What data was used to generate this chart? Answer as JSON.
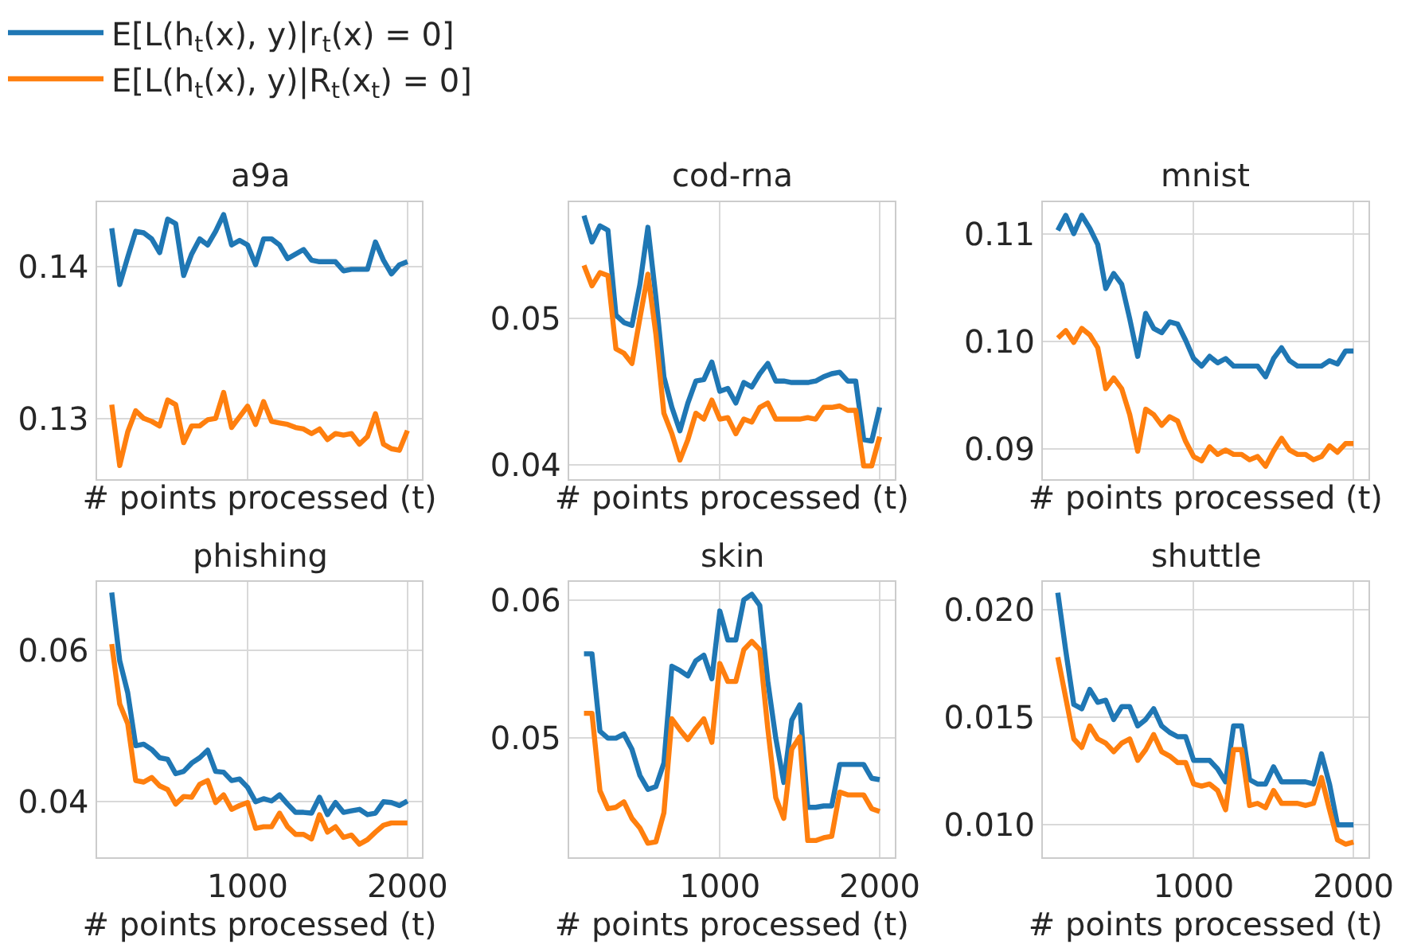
{
  "chart_data": [
    {
      "type": "line",
      "title": "a9a",
      "xlabel": "# points processed (t)",
      "legend": "top left",
      "grid": true,
      "tick_labels": "y",
      "xlim": [
        57.5,
        2092.5
      ],
      "xticks": [
        1000,
        2000
      ],
      "ylim": [
        0.126,
        0.1442
      ],
      "yticks": [
        0.13,
        0.14
      ],
      "x": [
        150,
        200,
        250,
        300,
        350,
        400,
        450,
        500,
        550,
        600,
        650,
        700,
        750,
        800,
        850,
        900,
        950,
        1000,
        1050,
        1100,
        1150,
        1200,
        1250,
        1300,
        1350,
        1400,
        1450,
        1500,
        1550,
        1600,
        1650,
        1700,
        1750,
        1800,
        1850,
        1900,
        1950,
        2000
      ],
      "series": [
        {
          "name": "E[L(h$_{t}$(x), y)|r$_{t}$(x) = 0]",
          "color": "#1f77b4",
          "values": [
            0.1425,
            0.1388,
            0.1406,
            0.1423,
            0.1422,
            0.1418,
            0.1409,
            0.1431,
            0.1428,
            0.1394,
            0.1408,
            0.1418,
            0.1414,
            0.1423,
            0.1434,
            0.1414,
            0.1417,
            0.1414,
            0.1401,
            0.1418,
            0.1418,
            0.1414,
            0.1405,
            0.1408,
            0.1411,
            0.1404,
            0.1403,
            0.1403,
            0.1403,
            0.1397,
            0.1398,
            0.1398,
            0.1398,
            0.1416,
            0.1404,
            0.1395,
            0.1401,
            0.1403
          ]
        },
        {
          "name": "E[L(h$_{t}$(x), y)|R$_{t}$(x$_{t}$) = 0]",
          "color": "#ff7f0e",
          "values": [
            0.1309,
            0.1269,
            0.1291,
            0.1305,
            0.13,
            0.1298,
            0.1295,
            0.1312,
            0.1309,
            0.1284,
            0.1295,
            0.1295,
            0.1299,
            0.13,
            0.1317,
            0.1294,
            0.1301,
            0.1308,
            0.1296,
            0.1311,
            0.1298,
            0.1297,
            0.1296,
            0.1294,
            0.1293,
            0.129,
            0.1293,
            0.1286,
            0.129,
            0.1289,
            0.129,
            0.1283,
            0.1288,
            0.1303,
            0.1283,
            0.128,
            0.1279,
            0.1292
          ]
        }
      ]
    },
    {
      "type": "line",
      "title": "cod-rna",
      "xlabel": "# points processed (t)",
      "grid": true,
      "tick_labels": "y",
      "xlim": [
        57.5,
        2092.5
      ],
      "xticks": [
        1000,
        2000
      ],
      "ylim": [
        0.039,
        0.0579
      ],
      "yticks": [
        0.04,
        0.05
      ],
      "x": [
        150,
        200,
        250,
        300,
        350,
        400,
        450,
        500,
        550,
        600,
        650,
        700,
        750,
        800,
        850,
        900,
        950,
        1000,
        1050,
        1100,
        1150,
        1200,
        1250,
        1300,
        1350,
        1400,
        1450,
        1500,
        1550,
        1600,
        1650,
        1700,
        1750,
        1800,
        1850,
        1900,
        1950,
        2000
      ],
      "series": [
        {
          "color": "#1f77b4",
          "values": [
            0.057,
            0.0552,
            0.0563,
            0.056,
            0.0502,
            0.0497,
            0.0495,
            0.0523,
            0.0562,
            0.0514,
            0.046,
            0.0439,
            0.0423,
            0.0442,
            0.0457,
            0.0458,
            0.047,
            0.045,
            0.0452,
            0.0442,
            0.0456,
            0.0453,
            0.0462,
            0.0469,
            0.0457,
            0.0457,
            0.0456,
            0.0456,
            0.0456,
            0.0457,
            0.046,
            0.0462,
            0.0463,
            0.0457,
            0.0457,
            0.0417,
            0.0416,
            0.0439
          ]
        },
        {
          "color": "#ff7f0e",
          "values": [
            0.0536,
            0.0522,
            0.0531,
            0.0529,
            0.0479,
            0.0476,
            0.0469,
            0.05,
            0.053,
            0.0489,
            0.0435,
            0.0421,
            0.0403,
            0.0417,
            0.0435,
            0.0431,
            0.0444,
            0.0431,
            0.0432,
            0.0421,
            0.0431,
            0.0429,
            0.0439,
            0.0442,
            0.0431,
            0.0431,
            0.0431,
            0.0431,
            0.0432,
            0.0431,
            0.0439,
            0.0439,
            0.044,
            0.0437,
            0.0437,
            0.0399,
            0.0399,
            0.0419
          ]
        }
      ]
    },
    {
      "type": "line",
      "title": "mnist",
      "xlabel": "# points processed (t)",
      "grid": true,
      "tick_labels": "y",
      "xlim": [
        57.5,
        2092.5
      ],
      "xticks": [
        1000,
        2000
      ],
      "ylim": [
        0.0872,
        0.1129
      ],
      "yticks": [
        0.09,
        {
          "value": 0.1,
          "label": "0.10"
        },
        0.11
      ],
      "x": [
        150,
        200,
        250,
        300,
        350,
        400,
        450,
        500,
        550,
        600,
        650,
        700,
        750,
        800,
        850,
        900,
        950,
        1000,
        1050,
        1100,
        1150,
        1200,
        1250,
        1300,
        1350,
        1400,
        1450,
        1500,
        1550,
        1600,
        1650,
        1700,
        1750,
        1800,
        1850,
        1900,
        1950,
        2000
      ],
      "series": [
        {
          "color": "#1f77b4",
          "values": [
            0.1103,
            0.1117,
            0.11,
            0.1117,
            0.1105,
            0.109,
            0.1049,
            0.1063,
            0.1053,
            0.1021,
            0.0986,
            0.1026,
            0.1012,
            0.1008,
            0.1018,
            0.1016,
            0.1001,
            0.0984,
            0.0977,
            0.0986,
            0.098,
            0.0984,
            0.0977,
            0.0977,
            0.0977,
            0.0977,
            0.0967,
            0.0984,
            0.0994,
            0.0982,
            0.0977,
            0.0977,
            0.0977,
            0.0977,
            0.0982,
            0.0979,
            0.0991,
            0.0991
          ]
        },
        {
          "color": "#ff7f0e",
          "values": [
            0.1003,
            0.101,
            0.0999,
            0.1012,
            0.1006,
            0.0994,
            0.0956,
            0.0966,
            0.0956,
            0.0932,
            0.0898,
            0.0937,
            0.0932,
            0.0922,
            0.093,
            0.0926,
            0.0907,
            0.0893,
            0.0889,
            0.0902,
            0.0895,
            0.0899,
            0.0895,
            0.0895,
            0.089,
            0.0893,
            0.0884,
            0.0898,
            0.091,
            0.0899,
            0.0895,
            0.0895,
            0.089,
            0.0893,
            0.0903,
            0.0897,
            0.0905,
            0.0905
          ]
        }
      ]
    },
    {
      "type": "line",
      "title": "phishing",
      "xlabel": "# points processed (t)",
      "grid": true,
      "xlim": [
        57.5,
        2092.5
      ],
      "xticks": [
        1000,
        2000
      ],
      "ylim": [
        0.0327,
        0.069
      ],
      "yticks": [
        0.04,
        0.06
      ],
      "x": [
        150,
        200,
        250,
        300,
        350,
        400,
        450,
        500,
        550,
        600,
        650,
        700,
        750,
        800,
        850,
        900,
        950,
        1000,
        1050,
        1100,
        1150,
        1200,
        1250,
        1300,
        1350,
        1400,
        1450,
        1500,
        1550,
        1600,
        1650,
        1700,
        1750,
        1800,
        1850,
        1900,
        1950,
        2000
      ],
      "series": [
        {
          "color": "#1f77b4",
          "values": [
            0.0676,
            0.0586,
            0.0544,
            0.0474,
            0.0476,
            0.0469,
            0.0458,
            0.0456,
            0.0437,
            0.044,
            0.0451,
            0.0458,
            0.0468,
            0.044,
            0.0439,
            0.0428,
            0.043,
            0.0419,
            0.04,
            0.0404,
            0.0401,
            0.0409,
            0.0397,
            0.0386,
            0.0386,
            0.0385,
            0.0406,
            0.0383,
            0.0399,
            0.0386,
            0.0388,
            0.039,
            0.0383,
            0.0385,
            0.04,
            0.0399,
            0.0395,
            0.0401
          ]
        },
        {
          "color": "#ff7f0e",
          "values": [
            0.0608,
            0.0529,
            0.0503,
            0.0428,
            0.0426,
            0.0432,
            0.0421,
            0.0416,
            0.0397,
            0.0407,
            0.0406,
            0.0423,
            0.0428,
            0.0399,
            0.0409,
            0.039,
            0.0395,
            0.0399,
            0.0365,
            0.0367,
            0.0367,
            0.0385,
            0.0367,
            0.0357,
            0.0357,
            0.0351,
            0.0383,
            0.036,
            0.0367,
            0.0353,
            0.0356,
            0.0344,
            0.035,
            0.036,
            0.0369,
            0.0372,
            0.0372,
            0.0372
          ]
        }
      ]
    },
    {
      "type": "line",
      "title": "skin",
      "xlabel": "# points processed (t)",
      "grid": true,
      "xlim": [
        57.5,
        2092.5
      ],
      "xticks": [
        1000,
        2000
      ],
      "ylim": [
        0.0414,
        0.0613
      ],
      "yticks": [
        0.05,
        0.06
      ],
      "x": [
        150,
        200,
        250,
        300,
        350,
        400,
        450,
        500,
        550,
        600,
        650,
        700,
        750,
        800,
        850,
        900,
        950,
        1000,
        1050,
        1100,
        1150,
        1200,
        1250,
        1300,
        1350,
        1400,
        1450,
        1500,
        1550,
        1600,
        1650,
        1700,
        1750,
        1800,
        1850,
        1900,
        1950,
        2000
      ],
      "series": [
        {
          "color": "#1f77b4",
          "values": [
            0.0561,
            0.0561,
            0.0505,
            0.05,
            0.05,
            0.0503,
            0.0492,
            0.0473,
            0.0463,
            0.0465,
            0.0482,
            0.0552,
            0.0549,
            0.0545,
            0.0556,
            0.056,
            0.0543,
            0.0592,
            0.0571,
            0.0571,
            0.06,
            0.0604,
            0.0596,
            0.0541,
            0.05,
            0.0468,
            0.0513,
            0.0524,
            0.045,
            0.045,
            0.0451,
            0.0451,
            0.0481,
            0.0481,
            0.0481,
            0.0481,
            0.0471,
            0.047
          ]
        },
        {
          "color": "#ff7f0e",
          "values": [
            0.0518,
            0.0518,
            0.0462,
            0.0449,
            0.045,
            0.0454,
            0.0442,
            0.0435,
            0.0424,
            0.0425,
            0.0446,
            0.0514,
            0.0506,
            0.0499,
            0.0507,
            0.0514,
            0.0497,
            0.0554,
            0.0541,
            0.0541,
            0.0564,
            0.057,
            0.0564,
            0.0507,
            0.0457,
            0.0442,
            0.0492,
            0.0501,
            0.0426,
            0.0426,
            0.0428,
            0.0429,
            0.0461,
            0.0459,
            0.0459,
            0.0459,
            0.0449,
            0.0447
          ]
        }
      ]
    },
    {
      "type": "line",
      "title": "shuttle",
      "xlabel": "# points processed (t)",
      "grid": true,
      "xlim": [
        57.5,
        2092.5
      ],
      "xticks": [
        1000,
        2000
      ],
      "ylim": [
        0.0085,
        0.0213
      ],
      "yticks": [
        {
          "value": 0.01,
          "label": "0.010"
        },
        {
          "value": 0.015,
          "label": "0.015"
        },
        {
          "value": 0.02,
          "label": "0.020"
        }
      ],
      "x": [
        150,
        200,
        250,
        300,
        350,
        400,
        450,
        500,
        550,
        600,
        650,
        700,
        750,
        800,
        850,
        900,
        950,
        1000,
        1050,
        1100,
        1150,
        1200,
        1250,
        1300,
        1350,
        1400,
        1450,
        1500,
        1550,
        1600,
        1650,
        1700,
        1750,
        1800,
        1850,
        1900,
        1950,
        2000
      ],
      "series": [
        {
          "color": "#1f77b4",
          "values": [
            0.0208,
            0.0181,
            0.0156,
            0.0154,
            0.0163,
            0.0157,
            0.0158,
            0.0149,
            0.0155,
            0.0155,
            0.0146,
            0.0149,
            0.0154,
            0.0146,
            0.0143,
            0.0141,
            0.0141,
            0.013,
            0.013,
            0.013,
            0.0126,
            0.012,
            0.0146,
            0.0146,
            0.0121,
            0.0119,
            0.0119,
            0.0127,
            0.012,
            0.012,
            0.012,
            0.012,
            0.0119,
            0.0133,
            0.0119,
            0.01,
            0.01,
            0.01
          ]
        },
        {
          "color": "#ff7f0e",
          "values": [
            0.0178,
            0.0159,
            0.014,
            0.0136,
            0.0146,
            0.014,
            0.0138,
            0.0134,
            0.0138,
            0.014,
            0.013,
            0.0135,
            0.0142,
            0.0134,
            0.0132,
            0.0129,
            0.0129,
            0.0119,
            0.0118,
            0.0119,
            0.0116,
            0.0107,
            0.0135,
            0.0135,
            0.0109,
            0.011,
            0.0108,
            0.0116,
            0.011,
            0.011,
            0.011,
            0.0109,
            0.011,
            0.0122,
            0.0107,
            0.0093,
            0.0091,
            0.0092
          ]
        }
      ]
    }
  ]
}
